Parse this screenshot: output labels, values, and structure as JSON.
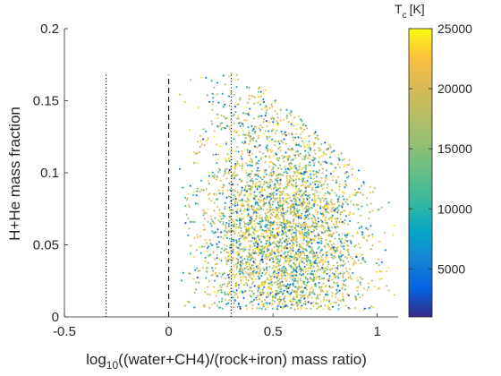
{
  "chart_data": {
    "type": "scatter",
    "xlabel_prefix": "log",
    "xlabel_sub": "10",
    "xlabel_rest": "((water+CH4)/(rock+iron) mass ratio)",
    "ylabel": "H+He mass fraction",
    "xlim": [
      -0.5,
      1.1
    ],
    "ylim": [
      0,
      0.2
    ],
    "xticks": [
      "-0.5",
      "0",
      "0.5",
      "1"
    ],
    "xtick_values": [
      -0.5,
      0,
      0.5,
      1
    ],
    "yticks": [
      "0",
      "0.05",
      "0.1",
      "0.15",
      "0.2"
    ],
    "ytick_values": [
      0,
      0.05,
      0.1,
      0.15,
      0.2
    ],
    "grid": false,
    "reference_lines": [
      {
        "x": -0.3,
        "style": "dotted",
        "y_range": [
          0,
          0.168
        ]
      },
      {
        "x": 0.0,
        "style": "dashed",
        "y_range": [
          0,
          0.168
        ]
      },
      {
        "x": 0.3,
        "style": "dotted",
        "y_range": [
          0,
          0.168
        ]
      }
    ],
    "scatter_cloud": {
      "point_count": 3500,
      "x_range": [
        0.05,
        1.1
      ],
      "y_range": [
        0.005,
        0.17
      ],
      "upper_envelope": [
        [
          0.05,
          0.165
        ],
        [
          0.3,
          0.17
        ],
        [
          0.5,
          0.155
        ],
        [
          0.7,
          0.13
        ],
        [
          0.9,
          0.105
        ],
        [
          1.1,
          0.075
        ]
      ],
      "density_center": [
        0.55,
        0.055
      ],
      "color_value_range": [
        1000,
        25000
      ]
    },
    "colorbar": {
      "title_main": "T",
      "title_sub": "c",
      "title_unit": "[K]",
      "min": 1000,
      "max": 25000,
      "ticks": [
        "5000",
        "10000",
        "15000",
        "20000",
        "25000"
      ],
      "tick_values": [
        5000,
        10000,
        15000,
        20000,
        25000
      ],
      "colormap": "parula"
    }
  }
}
